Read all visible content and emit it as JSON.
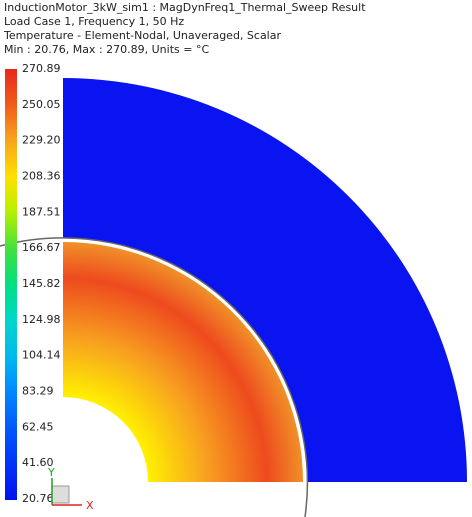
{
  "header": {
    "lines": [
      "InductionMotor_3kW_sim1 : MagDynFreq1_Thermal_Sweep Result",
      "Load Case 1, Frequency 1, 50 Hz",
      "Temperature - Element-Nodal, Unaveraged, Scalar",
      "Min : 20.76, Max : 270.89, Units = °C"
    ]
  },
  "legend": {
    "labels": [
      "270.89",
      "250.05",
      "229.20",
      "208.36",
      "187.51",
      "166.67",
      "145.82",
      "124.98",
      "104.14",
      "83.29",
      "62.45",
      "41.60",
      "20.76"
    ]
  },
  "triad": {
    "x": "X",
    "y": "Y"
  }
}
